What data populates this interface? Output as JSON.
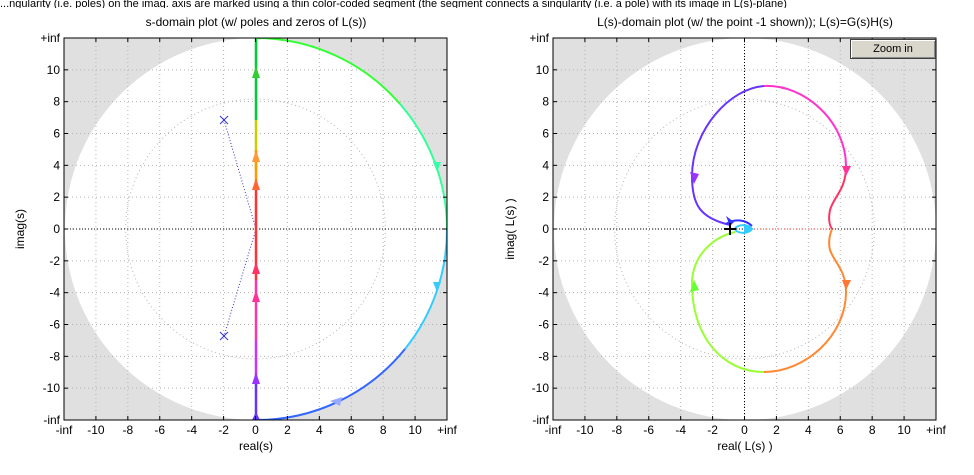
{
  "caption": "...ngularity (i.e. poles) on the imag. axis are marked using a thin color-coded segment (the segment connects a singularity (i.e. a pole) with its image in L(s)-plane)",
  "zoom_button": {
    "label": "Zoom in"
  },
  "colors": {
    "plot_bg": "#e0e0e0",
    "disk_bg": "#ffffff",
    "grid": "#b4b4b4",
    "pole_marker": "#3333cc",
    "critical_point": "#000000"
  },
  "icons": {
    "critical_point": "plus-icon",
    "poles": "x-mark-icon"
  },
  "plots": [
    {
      "id": "s-plane",
      "title": "s-domain plot (w/ poles and zeros of L(s))",
      "xlabel": "real(s)",
      "ylabel": "imag(s)",
      "xticks": [
        "-inf",
        "-10",
        "-8",
        "-6",
        "-4",
        "-2",
        "0",
        "2",
        "4",
        "6",
        "8",
        "10",
        "+inf"
      ],
      "yticks": [
        "+inf",
        "10",
        "8",
        "6",
        "4",
        "2",
        "0",
        "-2",
        "-4",
        "-6",
        "-8",
        "-10",
        "-inf"
      ],
      "poles": [
        {
          "re": -2,
          "im": 6.8
        },
        {
          "re": -2,
          "im": -6.8
        }
      ]
    },
    {
      "id": "L-plane",
      "title": "L(s)-domain plot (w/ the point -1 shown)); L(s)=G(s)H(s)",
      "xlabel": "real( L(s) )",
      "ylabel": "imag( L(s) )",
      "xticks": [
        "-inf",
        "-10",
        "-8",
        "-6",
        "-4",
        "-2",
        "0",
        "2",
        "4",
        "6",
        "8",
        "10",
        "+inf"
      ],
      "yticks": [
        "+inf",
        "10",
        "8",
        "6",
        "4",
        "2",
        "0",
        "-2",
        "-4",
        "-6",
        "-8",
        "-10",
        "-inf"
      ],
      "critical_point": {
        "re": -1,
        "im": 0
      }
    }
  ]
}
